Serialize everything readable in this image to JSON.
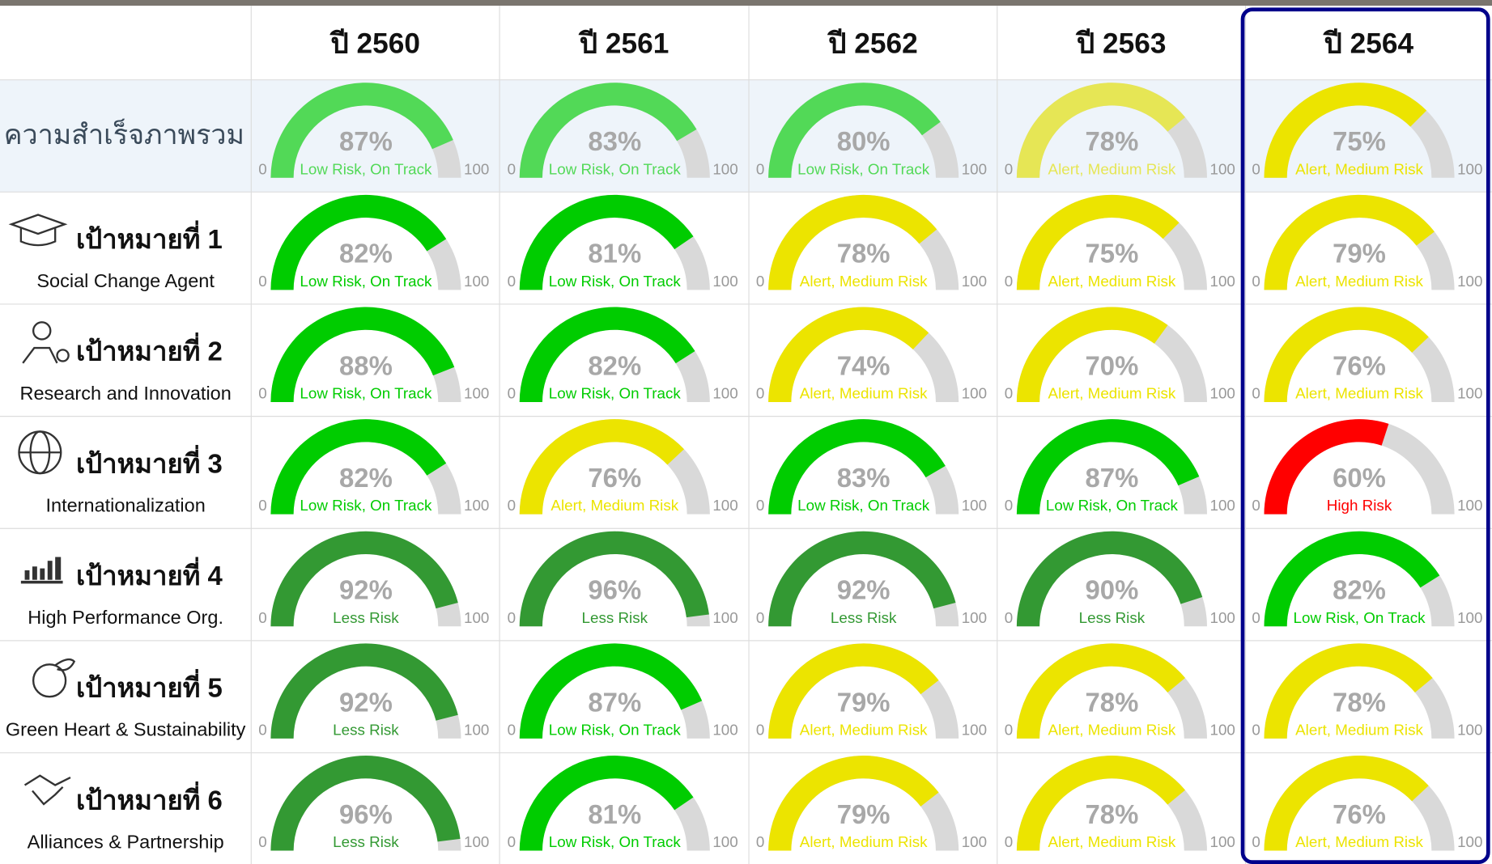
{
  "table": {
    "columns": [
      "ปี 2560",
      "ปี 2561",
      "ปี 2562",
      "ปี 2563",
      "ปี 2564"
    ],
    "rows": [
      {
        "label": "ความสำเร็จภาพรวม",
        "gauges": [
          {
            "type": "gauge",
            "value": 87,
            "value_label": "87%",
            "status": "Low Risk, On Track",
            "color": "#52d957",
            "min": 0,
            "max": 100
          },
          {
            "type": "gauge",
            "value": 83,
            "value_label": "83%",
            "status": "Low Risk, On Track",
            "color": "#52d957",
            "min": 0,
            "max": 100
          },
          {
            "type": "gauge",
            "value": 80,
            "value_label": "80%",
            "status": "Low Risk, On Track",
            "color": "#52d957",
            "min": 0,
            "max": 100
          },
          {
            "type": "gauge",
            "value": 78,
            "value_label": "78%",
            "status": "Alert, Medium Risk",
            "color": "#e6e655",
            "min": 0,
            "max": 100
          },
          {
            "type": "gauge",
            "value": 75,
            "value_label": "75%",
            "status": "Alert, Medium Risk",
            "color": "#ece400",
            "min": 0,
            "max": 100
          }
        ]
      },
      {
        "label": "เป้าหมายที่ 1",
        "sublabel": "Social Change Agent",
        "gauges": [
          {
            "type": "gauge",
            "value": 82,
            "value_label": "82%",
            "status": "Low Risk, On Track",
            "color": "#00cc00",
            "min": 0,
            "max": 100
          },
          {
            "type": "gauge",
            "value": 81,
            "value_label": "81%",
            "status": "Low Risk, On Track",
            "color": "#00cc00",
            "min": 0,
            "max": 100
          },
          {
            "type": "gauge",
            "value": 78,
            "value_label": "78%",
            "status": "Alert, Medium Risk",
            "color": "#ece400",
            "min": 0,
            "max": 100
          },
          {
            "type": "gauge",
            "value": 75,
            "value_label": "75%",
            "status": "Alert, Medium Risk",
            "color": "#ece400",
            "min": 0,
            "max": 100
          },
          {
            "type": "gauge",
            "value": 79,
            "value_label": "79%",
            "status": "Alert, Medium Risk",
            "color": "#ece400",
            "min": 0,
            "max": 100
          }
        ]
      },
      {
        "label": "เป้าหมายที่ 2",
        "sublabel": "Research and Innovation",
        "gauges": [
          {
            "type": "gauge",
            "value": 88,
            "value_label": "88%",
            "status": "Low Risk, On Track",
            "color": "#00cc00",
            "min": 0,
            "max": 100
          },
          {
            "type": "gauge",
            "value": 82,
            "value_label": "82%",
            "status": "Low Risk, On Track",
            "color": "#00cc00",
            "min": 0,
            "max": 100
          },
          {
            "type": "gauge",
            "value": 74,
            "value_label": "74%",
            "status": "Alert, Medium Risk",
            "color": "#ece400",
            "min": 0,
            "max": 100
          },
          {
            "type": "gauge",
            "value": 70,
            "value_label": "70%",
            "status": "Alert, Medium Risk",
            "color": "#ece400",
            "min": 0,
            "max": 100
          },
          {
            "type": "gauge",
            "value": 76,
            "value_label": "76%",
            "status": "Alert, Medium Risk",
            "color": "#ece400",
            "min": 0,
            "max": 100
          }
        ]
      },
      {
        "label": "เป้าหมายที่ 3",
        "sublabel": "Internationalization",
        "gauges": [
          {
            "type": "gauge",
            "value": 82,
            "value_label": "82%",
            "status": "Low Risk, On Track",
            "color": "#00cc00",
            "min": 0,
            "max": 100
          },
          {
            "type": "gauge",
            "value": 76,
            "value_label": "76%",
            "status": "Alert, Medium Risk",
            "color": "#ece400",
            "min": 0,
            "max": 100
          },
          {
            "type": "gauge",
            "value": 83,
            "value_label": "83%",
            "status": "Low Risk, On Track",
            "color": "#00cc00",
            "min": 0,
            "max": 100
          },
          {
            "type": "gauge",
            "value": 87,
            "value_label": "87%",
            "status": "Low Risk, On Track",
            "color": "#00cc00",
            "min": 0,
            "max": 100
          },
          {
            "type": "gauge",
            "value": 60,
            "value_label": "60%",
            "status": "High Risk",
            "color": "#ff0000",
            "min": 0,
            "max": 100
          }
        ]
      },
      {
        "label": "เป้าหมายที่ 4",
        "sublabel": "High Performance Org.",
        "gauges": [
          {
            "type": "gauge",
            "value": 92,
            "value_label": "92%",
            "status": "Less Risk",
            "color": "#339933",
            "min": 0,
            "max": 100
          },
          {
            "type": "gauge",
            "value": 96,
            "value_label": "96%",
            "status": "Less Risk",
            "color": "#339933",
            "min": 0,
            "max": 100
          },
          {
            "type": "gauge",
            "value": 92,
            "value_label": "92%",
            "status": "Less Risk",
            "color": "#339933",
            "min": 0,
            "max": 100
          },
          {
            "type": "gauge",
            "value": 90,
            "value_label": "90%",
            "status": "Less Risk",
            "color": "#339933",
            "min": 0,
            "max": 100
          },
          {
            "type": "gauge",
            "value": 82,
            "value_label": "82%",
            "status": "Low Risk, On Track",
            "color": "#00cc00",
            "min": 0,
            "max": 100
          }
        ]
      },
      {
        "label": "เป้าหมายที่ 5",
        "sublabel": "Green Heart & Sustainability",
        "gauges": [
          {
            "type": "gauge",
            "value": 92,
            "value_label": "92%",
            "status": "Less Risk",
            "color": "#339933",
            "min": 0,
            "max": 100
          },
          {
            "type": "gauge",
            "value": 87,
            "value_label": "87%",
            "status": "Low Risk, On Track",
            "color": "#00cc00",
            "min": 0,
            "max": 100
          },
          {
            "type": "gauge",
            "value": 79,
            "value_label": "79%",
            "status": "Alert, Medium Risk",
            "color": "#ece400",
            "min": 0,
            "max": 100
          },
          {
            "type": "gauge",
            "value": 78,
            "value_label": "78%",
            "status": "Alert, Medium Risk",
            "color": "#ece400",
            "min": 0,
            "max": 100
          },
          {
            "type": "gauge",
            "value": 78,
            "value_label": "78%",
            "status": "Alert, Medium Risk",
            "color": "#ece400",
            "min": 0,
            "max": 100
          }
        ]
      },
      {
        "label": "เป้าหมายที่ 6",
        "sublabel": "Alliances & Partnership",
        "gauges": [
          {
            "type": "gauge",
            "value": 96,
            "value_label": "96%",
            "status": "Less Risk",
            "color": "#339933",
            "min": 0,
            "max": 100
          },
          {
            "type": "gauge",
            "value": 81,
            "value_label": "81%",
            "status": "Low Risk, On Track",
            "color": "#00cc00",
            "min": 0,
            "max": 100
          },
          {
            "type": "gauge",
            "value": 79,
            "value_label": "79%",
            "status": "Alert, Medium Risk",
            "color": "#ece400",
            "min": 0,
            "max": 100
          },
          {
            "type": "gauge",
            "value": 78,
            "value_label": "78%",
            "status": "Alert, Medium Risk",
            "color": "#ece400",
            "min": 0,
            "max": 100
          },
          {
            "type": "gauge",
            "value": 76,
            "value_label": "76%",
            "status": "Alert, Medium Risk",
            "color": "#ece400",
            "min": 0,
            "max": 100
          }
        ]
      }
    ]
  }
}
